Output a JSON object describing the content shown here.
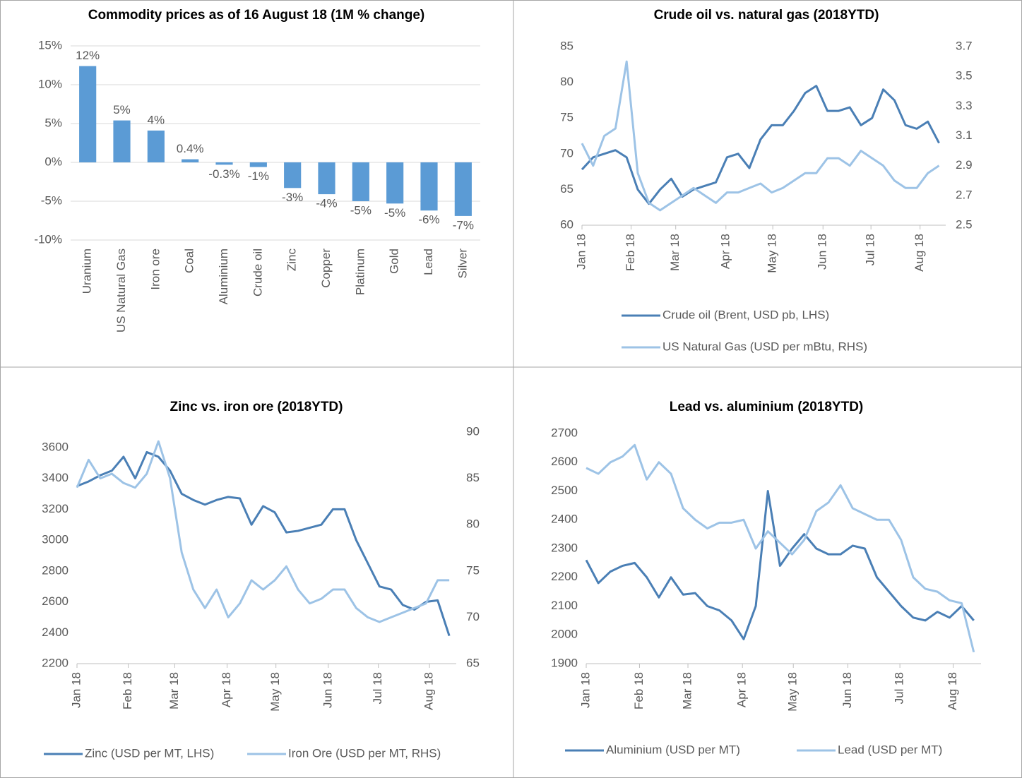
{
  "chart_data": [
    {
      "type": "bar",
      "title": "Commodity prices as of 16 August 18 (1M % change)",
      "categories": [
        "Uranium",
        "US Natural Gas",
        "Iron ore",
        "Coal",
        "Aluminium",
        "Crude oil",
        "Zinc",
        "Copper",
        "Platinum",
        "Gold",
        "Lead",
        "Silver"
      ],
      "values": [
        12.4,
        5.4,
        4.1,
        0.4,
        -0.3,
        -0.6,
        -3.3,
        -4.1,
        -5.0,
        -5.3,
        -6.2,
        -6.9
      ],
      "value_labels": [
        "12%",
        "5%",
        "4%",
        "0.4%",
        "-0.3%",
        "-1%",
        "-3%",
        "-4%",
        "-5%",
        "-5%",
        "-6%",
        "-7%"
      ],
      "color": "#5b9bd5",
      "grid": true,
      "ylim": [
        -10,
        15
      ],
      "yticks": [
        {
          "value": -10,
          "label": "-10%"
        },
        {
          "value": -5,
          "label": "-5%"
        },
        {
          "value": 0,
          "label": "0%"
        },
        {
          "value": 5,
          "label": "5%"
        },
        {
          "value": 10,
          "label": "10%"
        },
        {
          "value": 15,
          "label": "15%"
        }
      ]
    },
    {
      "type": "line",
      "title": "Crude oil vs. natural gas (2018YTD)",
      "grid": false,
      "legend": "bottom",
      "xlim": [
        0,
        32.6
      ],
      "xticks": [
        {
          "value": 0,
          "label": "Jan 18"
        },
        {
          "value": 4.4,
          "label": "Feb 18"
        },
        {
          "value": 8.4,
          "label": "Mar 18"
        },
        {
          "value": 12.9,
          "label": "Apr 18"
        },
        {
          "value": 17.1,
          "label": "May 18"
        },
        {
          "value": 21.6,
          "label": "Jun 18"
        },
        {
          "value": 25.9,
          "label": "Jul 18"
        },
        {
          "value": 30.3,
          "label": "Aug 18"
        }
      ],
      "ylim": [
        60,
        85
      ],
      "yticks": [
        60,
        65,
        70,
        75,
        80,
        85
      ],
      "y2lim": [
        2.5,
        3.7
      ],
      "y2ticks": [
        2.5,
        2.7,
        2.9,
        3.1,
        3.3,
        3.5,
        3.7
      ],
      "series": [
        {
          "name": "Crude oil (Brent, USD pb, LHS)",
          "color": "#4a7fb5",
          "values": [
            67.8,
            69.5,
            70,
            70.5,
            69.5,
            65,
            63,
            65,
            66.5,
            64,
            65,
            65.5,
            66,
            69.5,
            70,
            68,
            72,
            74,
            74,
            76,
            78.5,
            79.5,
            76,
            76,
            76.5,
            74,
            75,
            79,
            77.5,
            74,
            73.5,
            74.5,
            71.5
          ]
        },
        {
          "name": "US Natural Gas (USD per mBtu, RHS)",
          "color": "#9dc3e6",
          "axis": "y2",
          "values": [
            3.05,
            2.9,
            3.1,
            3.15,
            3.6,
            2.85,
            2.65,
            2.6,
            2.65,
            2.7,
            2.75,
            2.7,
            2.65,
            2.72,
            2.72,
            2.75,
            2.78,
            2.72,
            2.75,
            2.8,
            2.85,
            2.85,
            2.95,
            2.95,
            2.9,
            3.0,
            2.95,
            2.9,
            2.8,
            2.75,
            2.75,
            2.85,
            2.9
          ]
        }
      ]
    },
    {
      "type": "line",
      "title": "Zinc vs. iron ore (2018YTD)",
      "grid": false,
      "legend": "bottom",
      "xlim": [
        0,
        32.6
      ],
      "xticks": [
        {
          "value": 0,
          "label": "Jan 18"
        },
        {
          "value": 4.4,
          "label": "Feb 18"
        },
        {
          "value": 8.4,
          "label": "Mar 18"
        },
        {
          "value": 12.9,
          "label": "Apr 18"
        },
        {
          "value": 17.1,
          "label": "May 18"
        },
        {
          "value": 21.6,
          "label": "Jun 18"
        },
        {
          "value": 25.9,
          "label": "Jul 18"
        },
        {
          "value": 30.3,
          "label": "Aug 18"
        }
      ],
      "ylim": [
        2200,
        3700
      ],
      "yticks": [
        2200,
        2400,
        2600,
        2800,
        3000,
        3200,
        3400,
        3600
      ],
      "y2lim": [
        65,
        90
      ],
      "y2ticks": [
        65,
        70,
        75,
        80,
        85,
        90
      ],
      "series": [
        {
          "name": "Zinc (USD per MT, LHS)",
          "color": "#4a7fb5",
          "values": [
            3350,
            3380,
            3420,
            3450,
            3540,
            3400,
            3570,
            3540,
            3450,
            3300,
            3260,
            3230,
            3260,
            3280,
            3270,
            3100,
            3220,
            3180,
            3050,
            3060,
            3080,
            3100,
            3200,
            3200,
            3000,
            2850,
            2700,
            2680,
            2580,
            2550,
            2600,
            2610,
            2380
          ]
        },
        {
          "name": "Iron Ore (USD per MT, RHS)",
          "color": "#9dc3e6",
          "axis": "y2",
          "values": [
            84,
            87,
            85,
            85.5,
            84.5,
            84,
            85.5,
            89,
            85,
            77,
            73,
            71,
            73,
            70,
            71.5,
            74,
            73,
            74,
            75.5,
            73,
            71.5,
            72,
            73,
            73,
            71,
            70,
            69.5,
            70,
            70.5,
            71,
            71.5,
            74,
            74
          ]
        }
      ]
    },
    {
      "type": "line",
      "title": "Lead vs. aluminium (2018YTD)",
      "grid": false,
      "legend": "bottom",
      "xlim": [
        0,
        32.6
      ],
      "xticks": [
        {
          "value": 0,
          "label": "Jan 18"
        },
        {
          "value": 4.4,
          "label": "Feb 18"
        },
        {
          "value": 8.4,
          "label": "Mar 18"
        },
        {
          "value": 12.9,
          "label": "Apr 18"
        },
        {
          "value": 17.1,
          "label": "May 18"
        },
        {
          "value": 21.6,
          "label": "Jun 18"
        },
        {
          "value": 25.9,
          "label": "Jul 18"
        },
        {
          "value": 30.3,
          "label": "Aug 18"
        }
      ],
      "ylim": [
        1900,
        2700
      ],
      "yticks": [
        1900,
        2000,
        2100,
        2200,
        2300,
        2400,
        2500,
        2600,
        2700
      ],
      "series": [
        {
          "name": "Aluminium (USD per MT)",
          "color": "#4a7fb5",
          "values": [
            2260,
            2180,
            2220,
            2240,
            2250,
            2200,
            2130,
            2200,
            2140,
            2145,
            2100,
            2085,
            2050,
            1985,
            2100,
            2500,
            2240,
            2300,
            2350,
            2300,
            2280,
            2280,
            2310,
            2300,
            2200,
            2150,
            2100,
            2060,
            2050,
            2080,
            2060,
            2100,
            2050
          ]
        },
        {
          "name": "Lead (USD per MT)",
          "color": "#9dc3e6",
          "values": [
            2580,
            2560,
            2600,
            2620,
            2660,
            2540,
            2600,
            2560,
            2440,
            2400,
            2370,
            2390,
            2390,
            2400,
            2300,
            2360,
            2320,
            2280,
            2330,
            2430,
            2460,
            2520,
            2440,
            2420,
            2400,
            2400,
            2330,
            2200,
            2160,
            2150,
            2120,
            2110,
            1940
          ]
        }
      ]
    }
  ]
}
